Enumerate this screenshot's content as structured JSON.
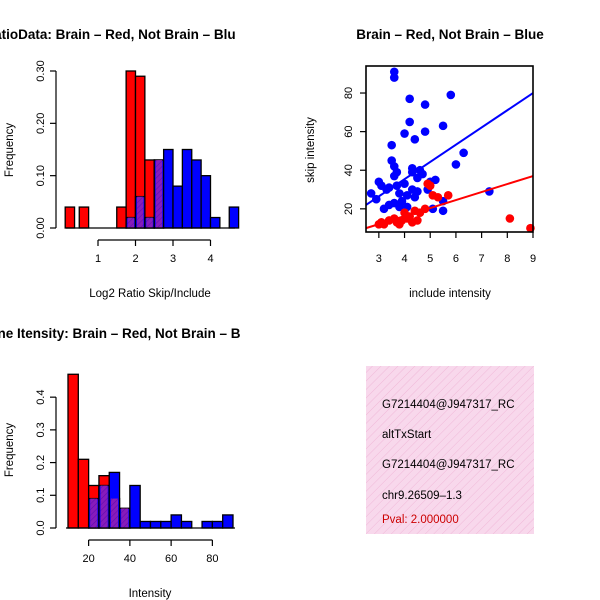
{
  "chart_data": [
    {
      "type": "bar",
      "title": "RatioData: Brain – Red, Not Brain – Blu",
      "xlabel": "Log2 Ratio Skip/Include",
      "ylabel": "Frequency",
      "xlim": [
        0.2,
        4.6
      ],
      "ylim": [
        0,
        0.3
      ],
      "x_ticks": [
        "1",
        "2",
        "3",
        "4"
      ],
      "x_tick_values": [
        1,
        2,
        3,
        4
      ],
      "y_ticks": [
        "0.00",
        "0.10",
        "0.20",
        "0.30"
      ],
      "y_tick_values": [
        0,
        0.1,
        0.2,
        0.3
      ],
      "bin_width": 0.25,
      "series": [
        {
          "name": "Brain",
          "color": "#ff0000",
          "bins": [
            [
              0.25,
              0.04
            ],
            [
              0.625,
              0.04
            ],
            [
              1.625,
              0.04
            ],
            [
              1.875,
              0.3
            ],
            [
              2.125,
              0.29
            ],
            [
              2.375,
              0.13
            ],
            [
              2.625,
              0.13
            ]
          ]
        },
        {
          "name": "Not Brain",
          "color": "#0000ff",
          "bins": [
            [
              1.875,
              0.02
            ],
            [
              2.125,
              0.06
            ],
            [
              2.375,
              0.02
            ],
            [
              2.625,
              0.13
            ],
            [
              2.875,
              0.15
            ],
            [
              3.125,
              0.08
            ],
            [
              3.375,
              0.15
            ],
            [
              3.625,
              0.13
            ],
            [
              3.875,
              0.1
            ],
            [
              4.125,
              0.02
            ],
            [
              4.625,
              0.04
            ]
          ]
        }
      ]
    },
    {
      "type": "scatter",
      "title": "Brain – Red, Not Brain – Blue",
      "xlabel": "include intensity",
      "ylabel": "skip intensity",
      "xlim": [
        2.5,
        9.0
      ],
      "ylim": [
        8,
        94
      ],
      "x_ticks": [
        "3",
        "4",
        "5",
        "6",
        "7",
        "8",
        "9"
      ],
      "x_tick_values": [
        3,
        4,
        5,
        6,
        7,
        8,
        9
      ],
      "y_ticks": [
        "20",
        "40",
        "60",
        "80"
      ],
      "y_tick_values": [
        20,
        40,
        60,
        80
      ],
      "series": [
        {
          "name": "Not Brain",
          "color": "#0000ff",
          "points": [
            [
              2.7,
              28
            ],
            [
              2.9,
              25
            ],
            [
              3.0,
              34
            ],
            [
              3.1,
              32
            ],
            [
              3.2,
              20
            ],
            [
              3.3,
              30
            ],
            [
              3.4,
              22
            ],
            [
              3.4,
              31
            ],
            [
              3.5,
              45
            ],
            [
              3.5,
              53
            ],
            [
              3.6,
              42
            ],
            [
              3.6,
              37
            ],
            [
              3.6,
              23
            ],
            [
              3.6,
              91
            ],
            [
              3.6,
              88
            ],
            [
              3.7,
              39
            ],
            [
              3.7,
              32
            ],
            [
              3.8,
              28
            ],
            [
              3.8,
              21
            ],
            [
              3.9,
              24
            ],
            [
              4.0,
              59
            ],
            [
              4.0,
              33
            ],
            [
              4.1,
              27
            ],
            [
              4.1,
              21
            ],
            [
              4.2,
              77
            ],
            [
              4.2,
              65
            ],
            [
              4.3,
              41
            ],
            [
              4.3,
              30
            ],
            [
              4.3,
              39
            ],
            [
              4.4,
              56
            ],
            [
              4.4,
              26
            ],
            [
              4.5,
              29
            ],
            [
              4.5,
              36
            ],
            [
              4.6,
              40
            ],
            [
              4.7,
              38
            ],
            [
              4.8,
              74
            ],
            [
              4.8,
              60
            ],
            [
              4.9,
              30
            ],
            [
              5.0,
              34
            ],
            [
              5.1,
              20
            ],
            [
              5.2,
              35
            ],
            [
              5.5,
              19
            ],
            [
              5.5,
              24
            ],
            [
              5.5,
              63
            ],
            [
              5.8,
              79
            ],
            [
              6.0,
              43
            ],
            [
              6.3,
              49
            ],
            [
              7.3,
              29
            ]
          ]
        },
        {
          "name": "Brain",
          "color": "#ff0000",
          "points": [
            [
              3.0,
              12
            ],
            [
              3.1,
              13
            ],
            [
              3.2,
              12
            ],
            [
              3.4,
              14
            ],
            [
              3.6,
              15
            ],
            [
              3.7,
              13
            ],
            [
              3.8,
              12
            ],
            [
              3.9,
              14
            ],
            [
              4.0,
              18
            ],
            [
              4.1,
              15
            ],
            [
              4.2,
              16
            ],
            [
              4.3,
              13
            ],
            [
              4.4,
              19
            ],
            [
              4.5,
              14
            ],
            [
              4.6,
              18
            ],
            [
              4.8,
              20
            ],
            [
              4.9,
              33
            ],
            [
              5.0,
              32
            ],
            [
              5.1,
              27
            ],
            [
              5.3,
              26
            ],
            [
              5.7,
              27
            ],
            [
              8.1,
              15
            ],
            [
              8.9,
              10
            ]
          ]
        }
      ],
      "fit_lines": [
        {
          "name": "Not Brain",
          "color": "#0000ff",
          "x": [
            2.5,
            9.0
          ],
          "y": [
            22,
            80
          ]
        },
        {
          "name": "Brain",
          "color": "#ff0000",
          "x": [
            2.5,
            9.0
          ],
          "y": [
            10,
            37
          ]
        }
      ]
    },
    {
      "type": "bar",
      "title": "Gene Itensity: Brain – Red, Not Brain – B",
      "xlabel": "Intensity",
      "ylabel": "Frequency",
      "xlim": [
        10,
        90
      ],
      "ylim": [
        0,
        0.48
      ],
      "x_ticks": [
        "20",
        "40",
        "60",
        "80"
      ],
      "x_tick_values": [
        20,
        40,
        60,
        80
      ],
      "y_ticks": [
        "0.0",
        "0.1",
        "0.2",
        "0.3",
        "0.4"
      ],
      "y_tick_values": [
        0,
        0.1,
        0.2,
        0.3,
        0.4
      ],
      "bin_width": 5,
      "series": [
        {
          "name": "Brain",
          "color": "#ff0000",
          "bins": [
            [
              12.5,
              0.47
            ],
            [
              17.5,
              0.21
            ],
            [
              22.5,
              0.13
            ],
            [
              27.5,
              0.16
            ],
            [
              32.5,
              0.09
            ],
            [
              37.5,
              0.06
            ]
          ]
        },
        {
          "name": "Not Brain",
          "color": "#0000ff",
          "bins": [
            [
              22.5,
              0.09
            ],
            [
              27.5,
              0.13
            ],
            [
              32.5,
              0.17
            ],
            [
              37.5,
              0.06
            ],
            [
              42.5,
              0.13
            ],
            [
              47.5,
              0.02
            ],
            [
              52.5,
              0.02
            ],
            [
              57.5,
              0.02
            ],
            [
              62.5,
              0.04
            ],
            [
              67.5,
              0.02
            ],
            [
              77.5,
              0.02
            ],
            [
              82.5,
              0.02
            ],
            [
              87.5,
              0.04
            ]
          ]
        }
      ]
    }
  ],
  "info_panel": {
    "background": "#f8d8ec",
    "line1": "G7214404@J947317_RC",
    "line2": "altTxStart",
    "line3": "G7214404@J947317_RC",
    "line4": "chr9.26509–1.3",
    "pval": "Pval: 2.000000",
    "pval_color": "#cc0000"
  }
}
